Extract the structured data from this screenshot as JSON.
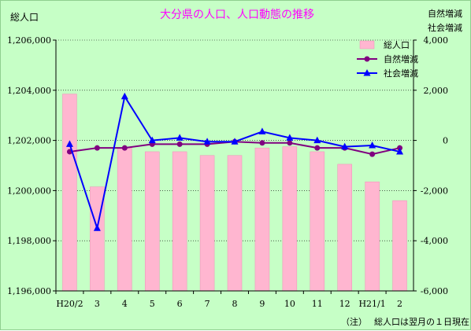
{
  "chart_data": {
    "type": "bar",
    "title": "大分県の人口、人口動態の推移",
    "categories": [
      "H20/2",
      "3",
      "4",
      "5",
      "6",
      "7",
      "8",
      "9",
      "10",
      "11",
      "12",
      "H21/1",
      "2"
    ],
    "y_left_label": "総人口",
    "y_right_label_line1": "自然増減",
    "y_right_label_line2": "社会増減",
    "y_left_range": [
      1196000,
      1206000
    ],
    "y_left_ticks": [
      "1,196,000",
      "1,198,000",
      "1,200,000",
      "1,202,000",
      "1,204,000",
      "1,206,000"
    ],
    "y_right_range": [
      -6000,
      4000
    ],
    "y_right_ticks": [
      "-6,000",
      "-4,000",
      "-2,000",
      "0",
      "2,000",
      "4,000"
    ],
    "grid": "horizontal",
    "legend_position": "top-right",
    "series": [
      {
        "name": "総人口",
        "kind": "bar",
        "axis": "left",
        "color": "#ffb6d0",
        "values": [
          1203850,
          1200150,
          1201700,
          1201550,
          1201550,
          1201400,
          1201400,
          1201700,
          1201750,
          1201550,
          1201050,
          1200350,
          1199600
        ]
      },
      {
        "name": "自然増減",
        "kind": "line",
        "axis": "right",
        "color": "#800080",
        "values": [
          -450,
          -300,
          -300,
          -150,
          -150,
          -150,
          -50,
          -100,
          -100,
          -300,
          -300,
          -550,
          -300
        ]
      },
      {
        "name": "社会増減",
        "kind": "line",
        "axis": "right",
        "color": "#0000ff",
        "values": [
          -150,
          -3500,
          1750,
          0,
          100,
          -50,
          -50,
          350,
          100,
          0,
          -250,
          -200,
          -450
        ]
      }
    ],
    "note_prefix": "（注）",
    "note": "総人口は翌月の１日現在"
  }
}
